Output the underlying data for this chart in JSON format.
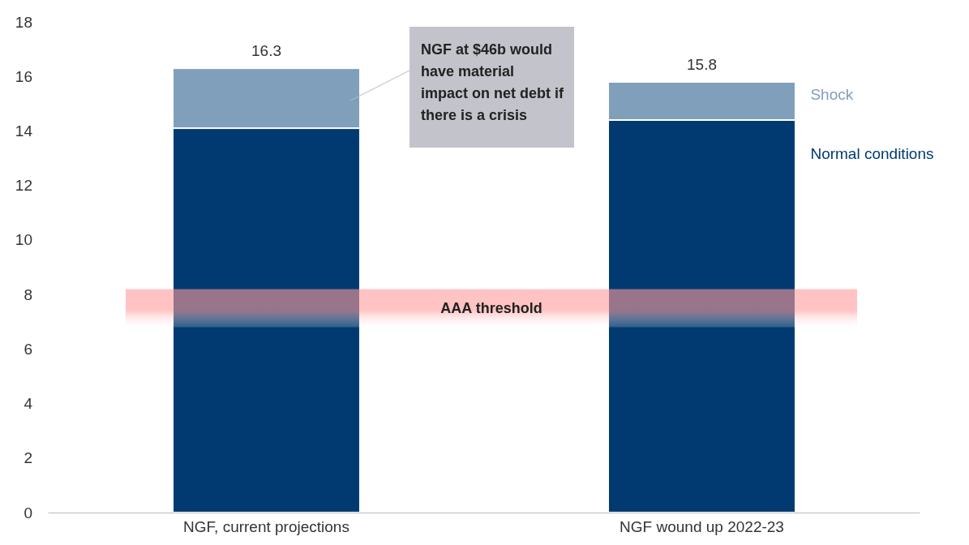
{
  "chart_data": {
    "type": "bar",
    "stacked": true,
    "categories": [
      "NGF, current projections",
      "NGF wound up 2022-23"
    ],
    "series": [
      {
        "name": "Normal conditions",
        "color": "#003a70",
        "values": [
          14.1,
          14.4
        ]
      },
      {
        "name": "Shock",
        "color": "#7f9fbb",
        "values": [
          2.2,
          1.4
        ]
      }
    ],
    "totals": [
      "16.3",
      "15.8"
    ],
    "ylim": [
      0,
      18
    ],
    "yticks": [
      0,
      2,
      4,
      6,
      8,
      10,
      12,
      14,
      16,
      18
    ],
    "grid": false,
    "legend": false,
    "bands": [
      {
        "axis": "y",
        "from": 6.8,
        "to": 8.2,
        "label": "AAA threshold",
        "color": "#ff9b9b"
      }
    ],
    "annotations": [
      "NGF at $46b would have material impact on net debt if there is a crisis"
    ]
  }
}
